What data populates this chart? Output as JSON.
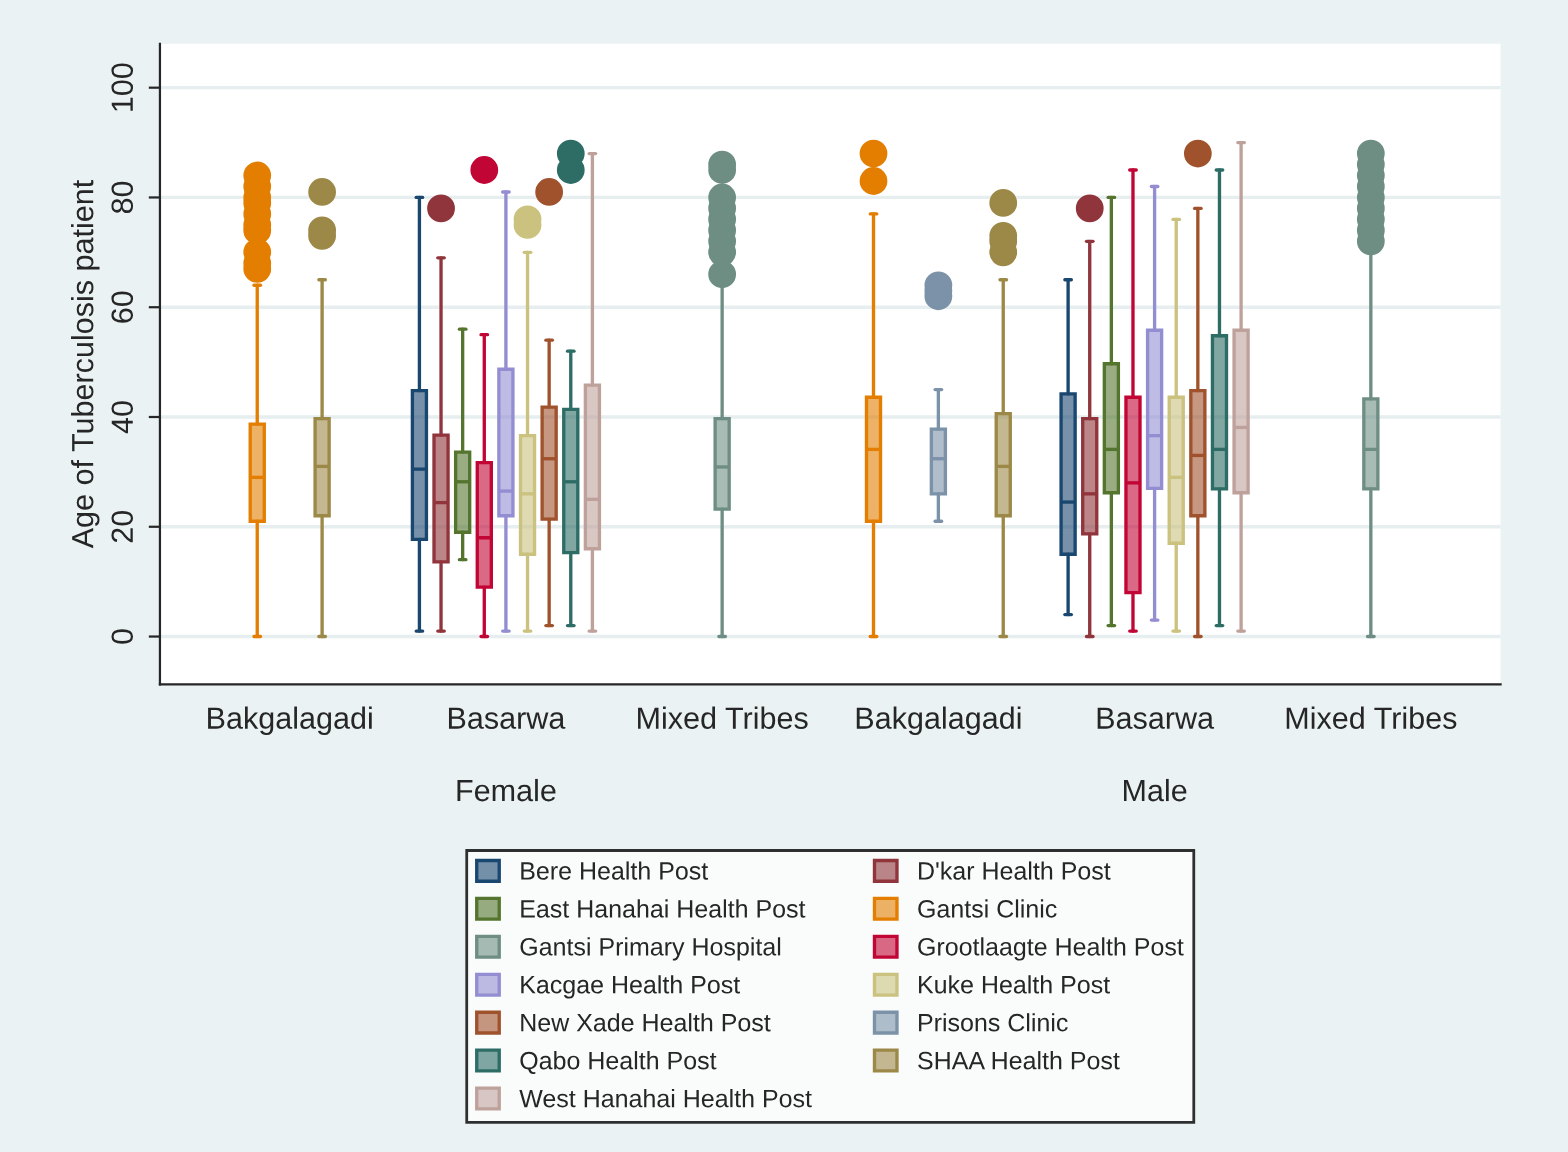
{
  "chart_data": {
    "type": "box",
    "ylabel": "Age of Tuberculosis patient",
    "categories": [
      "Bakgalagadi",
      "Basarwa",
      "Mixed Tribes",
      "Bakgalagadi",
      "Basarwa",
      "Mixed Tribes"
    ],
    "annotations": [
      "Female",
      "Male"
    ],
    "ylim": [
      -8.7,
      108
    ],
    "yticks": [
      0,
      20,
      40,
      60,
      80,
      100
    ],
    "grid": "y",
    "legend": "bottom",
    "series": [
      {
        "name": "Bere Health Post",
        "color": "#1a476f",
        "boxes": [
          null,
          {
            "low": 1,
            "q1": 17.7,
            "median": 30.5,
            "q3": 44.8,
            "high": 80
          },
          null,
          null,
          {
            "low": 4,
            "q1": 15,
            "median": 24.5,
            "q3": 44.2,
            "high": 65
          },
          null
        ]
      },
      {
        "name": "D'kar Health Post",
        "color": "#90353b",
        "boxes": [
          null,
          {
            "low": 1,
            "q1": 13.6,
            "median": 24.4,
            "q3": 36.7,
            "high": 69,
            "outliers": [
              78
            ]
          },
          null,
          null,
          {
            "low": 0,
            "q1": 18.7,
            "median": 26,
            "q3": 39.7,
            "high": 72,
            "outliers": [
              78
            ]
          },
          null
        ]
      },
      {
        "name": "East Hanahai Health Post",
        "color": "#55752f",
        "boxes": [
          null,
          {
            "low": 14,
            "q1": 19,
            "median": 28.2,
            "q3": 33.6,
            "high": 56
          },
          null,
          null,
          {
            "low": 2,
            "q1": 26.2,
            "median": 34.1,
            "q3": 49.7,
            "high": 80
          },
          null
        ]
      },
      {
        "name": "Gantsi Clinic",
        "color": "#e37e00",
        "boxes": [
          {
            "low": 0,
            "q1": 21,
            "median": 29,
            "q3": 38.7,
            "high": 64,
            "outliers": [
              67,
              68,
              70,
              74,
              75,
              77,
              79,
              80,
              82,
              84
            ]
          },
          null,
          null,
          {
            "low": 0,
            "q1": 21,
            "median": 34.1,
            "q3": 43.6,
            "high": 77,
            "outliers": [
              83,
              88
            ]
          },
          null,
          null
        ]
      },
      {
        "name": "Gantsi Primary Hospital",
        "color": "#6e8e84",
        "boxes": [
          null,
          null,
          {
            "low": 0,
            "q1": 23.2,
            "median": 30.9,
            "q3": 39.7,
            "high": 66,
            "outliers": [
              66,
              70,
              72,
              74,
              76,
              78,
              80,
              85,
              86
            ]
          },
          null,
          null,
          {
            "low": 0,
            "q1": 26.9,
            "median": 34.1,
            "q3": 43.3,
            "high": 71,
            "outliers": [
              72,
              74,
              76,
              78,
              80,
              82,
              84,
              86,
              88
            ]
          }
        ]
      },
      {
        "name": "Grootlaagte Health Post",
        "color": "#c10534",
        "boxes": [
          null,
          {
            "low": 0,
            "q1": 9,
            "median": 18,
            "q3": 31.7,
            "high": 55,
            "outliers": [
              85
            ]
          },
          null,
          null,
          {
            "low": 1,
            "q1": 8,
            "median": 28,
            "q3": 43.6,
            "high": 85
          },
          null
        ]
      },
      {
        "name": "Kacgae Health Post",
        "color": "#938dd2",
        "boxes": [
          null,
          {
            "low": 1,
            "q1": 22,
            "median": 26.5,
            "q3": 48.7,
            "high": 81
          },
          null,
          null,
          {
            "low": 3,
            "q1": 27,
            "median": 36.6,
            "q3": 55.8,
            "high": 82
          },
          null
        ]
      },
      {
        "name": "Kuke Health Post",
        "color": "#cac27e",
        "boxes": [
          null,
          {
            "low": 1,
            "q1": 15,
            "median": 26,
            "q3": 36.6,
            "high": 70,
            "outliers": [
              75,
              76
            ]
          },
          null,
          null,
          {
            "low": 1,
            "q1": 17,
            "median": 29,
            "q3": 43.6,
            "high": 76
          },
          null
        ]
      },
      {
        "name": "New Xade Health Post",
        "color": "#a0522d",
        "boxes": [
          null,
          {
            "low": 2,
            "q1": 21.4,
            "median": 32.4,
            "q3": 41.8,
            "high": 54,
            "outliers": [
              81
            ]
          },
          null,
          null,
          {
            "low": 0,
            "q1": 22,
            "median": 33,
            "q3": 44.8,
            "high": 78,
            "outliers": [
              88
            ]
          },
          null
        ]
      },
      {
        "name": "Prisons Clinic",
        "color": "#7b92a8",
        "boxes": [
          null,
          null,
          null,
          {
            "low": 21,
            "q1": 26,
            "median": 32.4,
            "q3": 37.8,
            "high": 45,
            "outliers": [
              62,
              63,
              64
            ]
          },
          null,
          null
        ]
      },
      {
        "name": "Qabo Health Post",
        "color": "#2d6d66",
        "boxes": [
          null,
          {
            "low": 2,
            "q1": 15.3,
            "median": 28.2,
            "q3": 41.4,
            "high": 52,
            "outliers": [
              85,
              88
            ]
          },
          null,
          null,
          {
            "low": 2,
            "q1": 26.9,
            "median": 34.1,
            "q3": 54.8,
            "high": 85
          },
          null
        ]
      },
      {
        "name": "SHAA Health Post",
        "color": "#9c8847",
        "boxes": [
          {
            "low": 0,
            "q1": 22,
            "median": 31,
            "q3": 39.7,
            "high": 65,
            "outliers": [
              73,
              74,
              81
            ]
          },
          null,
          null,
          {
            "low": 0,
            "q1": 22,
            "median": 31,
            "q3": 40.6,
            "high": 65,
            "outliers": [
              70,
              72,
              73,
              79
            ]
          },
          null,
          null
        ]
      },
      {
        "name": "West Hanahai Health Post",
        "color": "#bfa19c",
        "boxes": [
          null,
          {
            "low": 1,
            "q1": 16,
            "median": 25,
            "q3": 45.8,
            "high": 88
          },
          null,
          null,
          {
            "low": 1,
            "q1": 26.2,
            "median": 38.1,
            "q3": 55.8,
            "high": 90
          },
          null
        ]
      }
    ]
  }
}
